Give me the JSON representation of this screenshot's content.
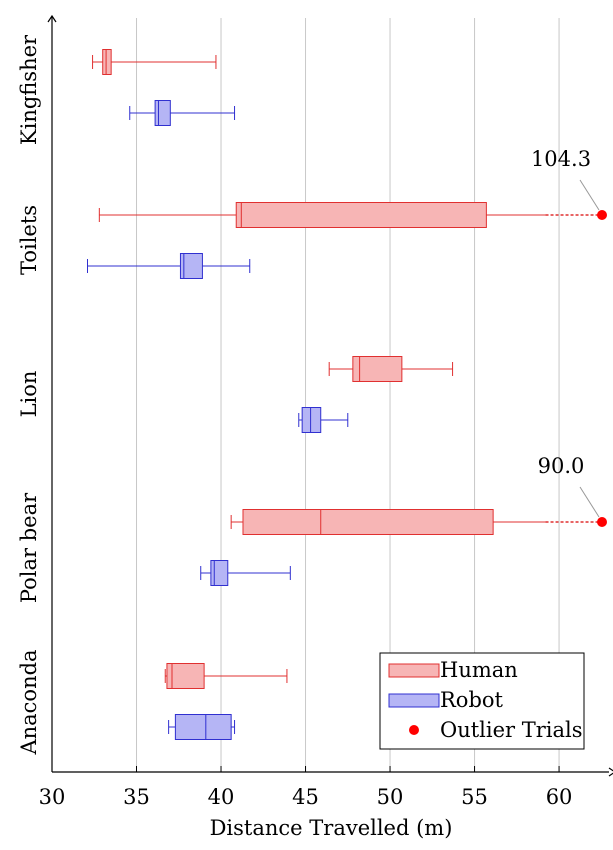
{
  "chart_data": {
    "type": "boxplot",
    "orientation": "horizontal",
    "xlabel": "Distance Travelled (m)",
    "xlim": [
      30,
      62.6
    ],
    "xticks": [
      30,
      35,
      40,
      45,
      50,
      55,
      60
    ],
    "grid": "vertical",
    "categories": [
      "Kingfisher",
      "Toilets",
      "Lion",
      "Polar bear",
      "Anaconda"
    ],
    "series": [
      {
        "name": "Human",
        "color": "#e03030",
        "fill": "#f7b5b5",
        "boxes": [
          {
            "category": "Kingfisher",
            "min": 32.4,
            "q1": 33.0,
            "median": 33.2,
            "q3": 33.5,
            "max": 39.7
          },
          {
            "category": "Toilets",
            "min": 32.8,
            "q1": 40.9,
            "median": 41.2,
            "q3": 55.7,
            "max": 62.6,
            "outlier": 104.3
          },
          {
            "category": "Lion",
            "min": 46.4,
            "q1": 47.8,
            "median": 48.2,
            "q3": 50.7,
            "max": 53.7
          },
          {
            "category": "Polar bear",
            "min": 40.6,
            "q1": 41.3,
            "median": 45.9,
            "q3": 56.1,
            "max": 62.6,
            "outlier": 90.0
          },
          {
            "category": "Anaconda",
            "min": 36.7,
            "q1": 36.8,
            "median": 37.1,
            "q3": 39.0,
            "max": 43.9
          }
        ]
      },
      {
        "name": "Robot",
        "color": "#3030d0",
        "fill": "#b5b5f5",
        "boxes": [
          {
            "category": "Kingfisher",
            "min": 34.6,
            "q1": 36.1,
            "median": 36.3,
            "q3": 37.0,
            "max": 40.8
          },
          {
            "category": "Toilets",
            "min": 32.1,
            "q1": 37.6,
            "median": 37.8,
            "q3": 38.9,
            "max": 41.7
          },
          {
            "category": "Lion",
            "min": 44.6,
            "q1": 44.8,
            "median": 45.3,
            "q3": 45.9,
            "max": 47.5
          },
          {
            "category": "Polar bear",
            "min": 38.8,
            "q1": 39.4,
            "median": 39.6,
            "q3": 40.4,
            "max": 44.1
          },
          {
            "category": "Anaconda",
            "min": 36.9,
            "q1": 37.3,
            "median": 39.1,
            "q3": 40.6,
            "max": 40.8
          }
        ]
      }
    ],
    "outlier_labels": [
      {
        "category": "Toilets",
        "label": "104.3"
      },
      {
        "category": "Polar bear",
        "label": "90.0"
      }
    ],
    "legend": {
      "placement": "bottom-right",
      "entries": [
        {
          "name": "Human",
          "marker": "box",
          "color": "#e03030",
          "fill": "#f7b5b5"
        },
        {
          "name": "Robot",
          "marker": "box",
          "color": "#3030d0",
          "fill": "#b5b5f5"
        },
        {
          "name": "Outlier Trials",
          "marker": "dot",
          "color": "#ff0000"
        }
      ]
    }
  }
}
